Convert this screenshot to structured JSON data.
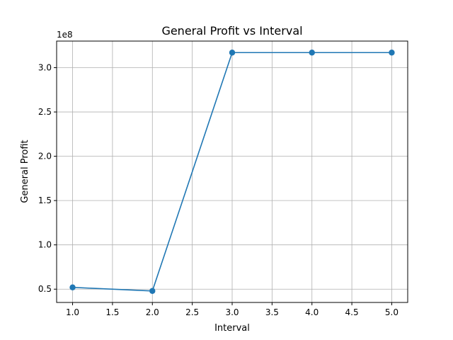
{
  "chart_data": {
    "type": "line",
    "title": "General Profit vs Interval",
    "xlabel": "Interval",
    "ylabel": "General Profit",
    "y_scale_label": "1e8",
    "x": [
      1.0,
      2.0,
      3.0,
      4.0,
      5.0
    ],
    "series": [
      {
        "values": [
          52000000,
          48000000,
          317000000,
          317000000,
          317000000
        ],
        "color": "#1f77b4",
        "marker": "circle"
      }
    ],
    "xlim": [
      0.8,
      5.2
    ],
    "ylim": [
      35000000,
      330000000
    ],
    "xticks": [
      1.0,
      1.5,
      2.0,
      2.5,
      3.0,
      3.5,
      4.0,
      4.5,
      5.0
    ],
    "xtick_labels": [
      "1.0",
      "1.5",
      "2.0",
      "2.5",
      "3.0",
      "3.5",
      "4.0",
      "4.5",
      "5.0"
    ],
    "yticks": [
      50000000,
      100000000,
      150000000,
      200000000,
      250000000,
      300000000
    ],
    "ytick_labels": [
      "0.5",
      "1.0",
      "1.5",
      "2.0",
      "2.5",
      "3.0"
    ],
    "grid": true,
    "legend": "none"
  }
}
